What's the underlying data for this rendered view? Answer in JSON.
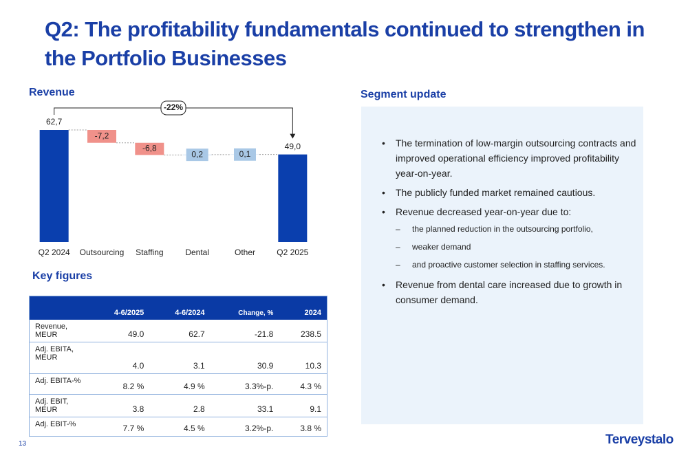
{
  "title": "Q2: The profitability fundamentals continued to strengthen in the Portfolio Businesses",
  "chart_data": {
    "type": "waterfall",
    "title": "Revenue",
    "categories": [
      "Q2 2024",
      "Outsourcing",
      "Staffing",
      "Dental",
      "Other",
      "Q2 2025"
    ],
    "values": [
      62.7,
      -7.2,
      -6.8,
      0.2,
      0.1,
      49.0
    ],
    "value_labels": [
      "62,7",
      "-7,2",
      "-6,8",
      "0,2",
      "0,1",
      "49,0"
    ],
    "colors": [
      "#0a3fae",
      "#f0918a",
      "#f0918a",
      "#a9c8e6",
      "#a9c8e6",
      "#0a3fae"
    ],
    "annotation": "-22%"
  },
  "key_figures": {
    "title": "Key figures",
    "columns": [
      "4-6/2025",
      "4-6/2024",
      "Change, %",
      "2024"
    ],
    "rows": [
      [
        "Revenue, MEUR",
        "49.0",
        "62.7",
        "-21.8",
        "238.5"
      ],
      [
        "Adj. EBITA, MEUR",
        "4.0",
        "3.1",
        "30.9",
        "10.3"
      ],
      [
        "Adj. EBITA-%",
        "8.2 %",
        "4.9 %",
        "3.3%-p.",
        "4.3 %"
      ],
      [
        "Adj. EBIT, MEUR",
        "3.8",
        "2.8",
        "33.1",
        "9.1"
      ],
      [
        "Adj. EBIT-%",
        "7.7 %",
        "4.5 %",
        "3.2%-p.",
        "3.8 %"
      ]
    ]
  },
  "segment": {
    "title": "Segment update",
    "bullets": [
      {
        "text": "The termination of low-margin outsourcing contracts and improved operational efficiency improved profitability year-on-year."
      },
      {
        "text": "The publicly funded market remained cautious."
      },
      {
        "text": "Revenue decreased year-on-year due to:",
        "sub": [
          "the planned reduction in the outsourcing portfolio,",
          "weaker demand",
          "and proactive customer selection in staffing services."
        ]
      },
      {
        "text": "Revenue from dental care increased due to growth in consumer demand."
      }
    ]
  },
  "footer": {
    "page": "13",
    "logo": "Terveystalo"
  }
}
